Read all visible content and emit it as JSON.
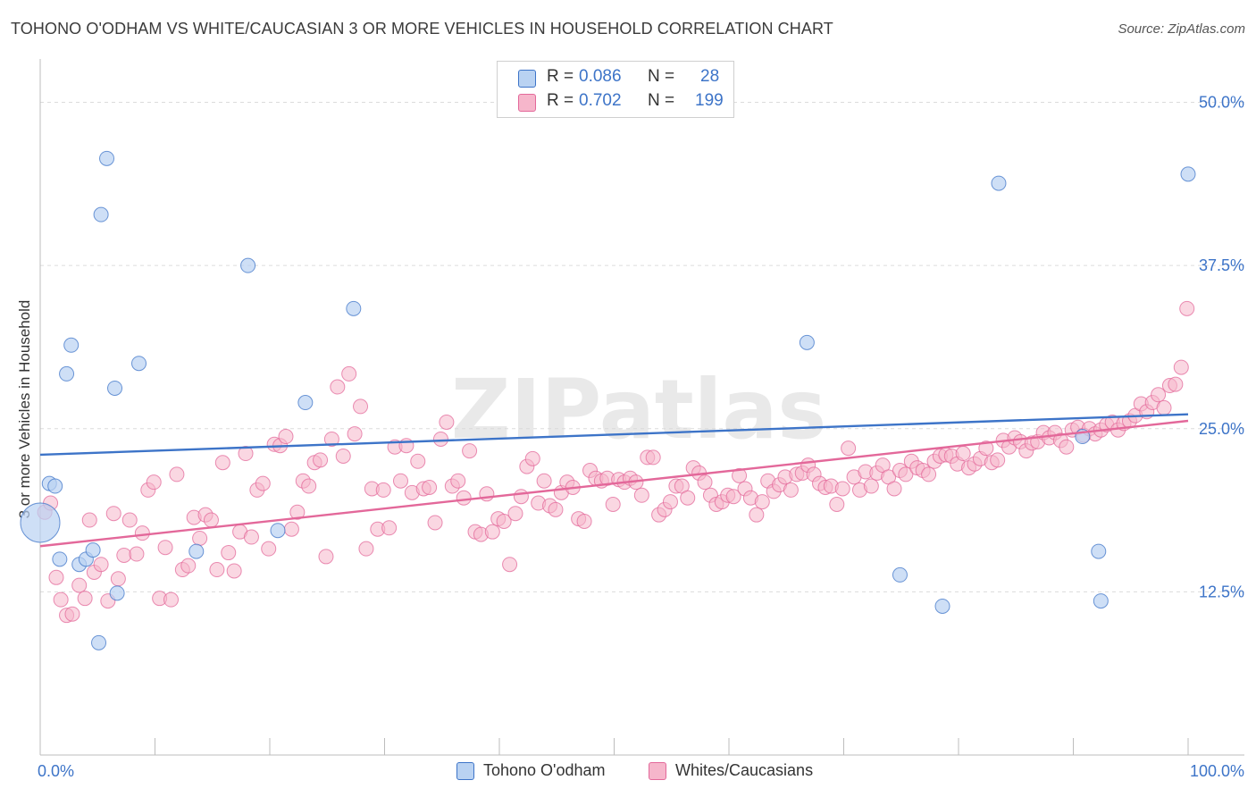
{
  "title": "TOHONO O'ODHAM VS WHITE/CAUCASIAN 3 OR MORE VEHICLES IN HOUSEHOLD CORRELATION CHART",
  "source": "Source: ZipAtlas.com",
  "colors": {
    "blue": "#3d74c8",
    "blue_fill": "#b9d2f2",
    "pink": "#e3689a",
    "pink_fill": "#f6b6cb",
    "tick_label": "#3d74c8"
  },
  "legend": {
    "rows": [
      {
        "r_label": "R =",
        "r_value": "0.086",
        "n_label": "N =",
        "n_value": "28"
      },
      {
        "r_label": "R =",
        "r_value": "0.702",
        "n_label": "N =",
        "n_value": "199"
      }
    ]
  },
  "bottom_legend": [
    "Tohono O'odham",
    "Whites/Caucasians"
  ],
  "watermark": "ZIPatlas",
  "chart_data": {
    "type": "scatter",
    "title": "TOHONO O'ODHAM VS WHITE/CAUCASIAN 3 OR MORE VEHICLES IN HOUSEHOLD CORRELATION CHART",
    "xlabel": "",
    "ylabel": "3 or more Vehicles in Household",
    "xlim": [
      0,
      100
    ],
    "ylim": [
      0,
      52.5
    ],
    "x_tick_labels": [
      "0.0%",
      "100.0%"
    ],
    "y_ticks": [
      12.5,
      25.0,
      37.5,
      50.0
    ],
    "y_tick_labels": [
      "12.5%",
      "25.0%",
      "37.5%",
      "50.0%"
    ],
    "grid": true,
    "series": [
      {
        "name": "Tohono O'odham",
        "color": "#3d74c8",
        "trend": {
          "x": [
            0,
            100
          ],
          "y": [
            23.0,
            26.1
          ]
        },
        "points": [
          [
            0.0,
            17.8
          ],
          [
            0.8,
            20.8
          ],
          [
            1.3,
            20.6
          ],
          [
            1.7,
            15.0
          ],
          [
            2.3,
            29.2
          ],
          [
            2.7,
            31.4
          ],
          [
            3.4,
            14.6
          ],
          [
            4.0,
            15.0
          ],
          [
            4.6,
            15.7
          ],
          [
            5.1,
            8.6
          ],
          [
            5.3,
            41.4
          ],
          [
            5.8,
            45.7
          ],
          [
            6.5,
            28.1
          ],
          [
            6.7,
            12.4
          ],
          [
            8.6,
            30.0
          ],
          [
            13.6,
            15.6
          ],
          [
            18.1,
            37.5
          ],
          [
            20.7,
            17.2
          ],
          [
            23.1,
            27.0
          ],
          [
            27.3,
            34.2
          ],
          [
            66.8,
            31.6
          ],
          [
            74.9,
            13.8
          ],
          [
            78.6,
            11.4
          ],
          [
            83.5,
            43.8
          ],
          [
            90.8,
            24.4
          ],
          [
            92.2,
            15.6
          ],
          [
            92.4,
            11.8
          ],
          [
            100.0,
            44.5
          ]
        ]
      },
      {
        "name": "Whites/Caucasians",
        "color": "#e3689a",
        "trend": {
          "x": [
            0,
            100
          ],
          "y": [
            16.0,
            25.6
          ]
        },
        "points": [
          [
            0.4,
            18.6
          ],
          [
            0.9,
            19.3
          ],
          [
            1.4,
            13.6
          ],
          [
            1.8,
            11.9
          ],
          [
            2.3,
            10.7
          ],
          [
            2.8,
            10.8
          ],
          [
            3.4,
            13.0
          ],
          [
            3.9,
            12.0
          ],
          [
            4.3,
            18.0
          ],
          [
            4.7,
            14.0
          ],
          [
            5.3,
            14.6
          ],
          [
            5.9,
            11.8
          ],
          [
            6.4,
            18.5
          ],
          [
            6.8,
            13.5
          ],
          [
            7.3,
            15.3
          ],
          [
            7.8,
            18.0
          ],
          [
            8.4,
            15.4
          ],
          [
            8.9,
            17.0
          ],
          [
            9.4,
            20.3
          ],
          [
            9.9,
            20.9
          ],
          [
            10.4,
            12.0
          ],
          [
            10.9,
            15.9
          ],
          [
            11.4,
            11.9
          ],
          [
            11.9,
            21.5
          ],
          [
            12.4,
            14.2
          ],
          [
            12.9,
            14.5
          ],
          [
            13.4,
            18.2
          ],
          [
            13.9,
            16.6
          ],
          [
            14.4,
            18.4
          ],
          [
            14.9,
            18.0
          ],
          [
            15.4,
            14.2
          ],
          [
            15.9,
            22.4
          ],
          [
            16.4,
            15.5
          ],
          [
            16.9,
            14.1
          ],
          [
            17.4,
            17.1
          ],
          [
            17.9,
            23.1
          ],
          [
            18.4,
            16.7
          ],
          [
            18.9,
            20.3
          ],
          [
            19.4,
            20.8
          ],
          [
            19.9,
            15.8
          ],
          [
            20.4,
            23.8
          ],
          [
            20.9,
            23.7
          ],
          [
            21.4,
            24.4
          ],
          [
            21.9,
            17.3
          ],
          [
            22.4,
            18.6
          ],
          [
            22.9,
            21.0
          ],
          [
            23.4,
            20.6
          ],
          [
            23.9,
            22.4
          ],
          [
            24.4,
            22.6
          ],
          [
            24.9,
            15.2
          ],
          [
            25.4,
            24.2
          ],
          [
            25.9,
            28.2
          ],
          [
            26.4,
            22.9
          ],
          [
            26.9,
            29.2
          ],
          [
            27.4,
            24.6
          ],
          [
            27.9,
            26.7
          ],
          [
            28.4,
            15.8
          ],
          [
            28.9,
            20.4
          ],
          [
            29.4,
            17.3
          ],
          [
            29.9,
            20.3
          ],
          [
            30.4,
            17.4
          ],
          [
            30.9,
            23.6
          ],
          [
            31.4,
            21.0
          ],
          [
            31.9,
            23.7
          ],
          [
            32.4,
            20.1
          ],
          [
            32.9,
            22.5
          ],
          [
            33.4,
            20.4
          ],
          [
            33.9,
            20.5
          ],
          [
            34.4,
            17.8
          ],
          [
            34.9,
            24.2
          ],
          [
            35.4,
            25.5
          ],
          [
            35.9,
            20.6
          ],
          [
            36.4,
            21.0
          ],
          [
            36.9,
            19.7
          ],
          [
            37.4,
            23.3
          ],
          [
            37.9,
            17.1
          ],
          [
            38.4,
            16.9
          ],
          [
            38.9,
            20.0
          ],
          [
            39.4,
            17.1
          ],
          [
            39.9,
            18.1
          ],
          [
            40.4,
            17.9
          ],
          [
            40.9,
            14.6
          ],
          [
            41.4,
            18.5
          ],
          [
            41.9,
            19.8
          ],
          [
            42.4,
            22.1
          ],
          [
            42.9,
            22.7
          ],
          [
            43.4,
            19.3
          ],
          [
            43.9,
            21.0
          ],
          [
            44.4,
            19.1
          ],
          [
            44.9,
            18.8
          ],
          [
            45.4,
            20.1
          ],
          [
            45.9,
            20.9
          ],
          [
            46.4,
            20.5
          ],
          [
            46.9,
            18.1
          ],
          [
            47.4,
            17.9
          ],
          [
            47.9,
            21.8
          ],
          [
            48.4,
            21.2
          ],
          [
            48.9,
            21.0
          ],
          [
            49.4,
            21.2
          ],
          [
            49.9,
            19.2
          ],
          [
            50.4,
            21.1
          ],
          [
            50.9,
            20.9
          ],
          [
            51.4,
            21.2
          ],
          [
            51.9,
            20.9
          ],
          [
            52.4,
            19.9
          ],
          [
            52.9,
            22.8
          ],
          [
            53.4,
            22.8
          ],
          [
            53.9,
            18.4
          ],
          [
            54.4,
            18.8
          ],
          [
            54.9,
            19.4
          ],
          [
            55.4,
            20.6
          ],
          [
            55.9,
            20.6
          ],
          [
            56.4,
            19.7
          ],
          [
            56.9,
            22.0
          ],
          [
            57.4,
            21.6
          ],
          [
            57.9,
            20.9
          ],
          [
            58.4,
            19.9
          ],
          [
            58.9,
            19.2
          ],
          [
            59.4,
            19.4
          ],
          [
            59.9,
            19.9
          ],
          [
            60.4,
            19.8
          ],
          [
            60.9,
            21.4
          ],
          [
            61.4,
            20.4
          ],
          [
            61.9,
            19.7
          ],
          [
            62.4,
            18.4
          ],
          [
            62.9,
            19.4
          ],
          [
            63.4,
            21.0
          ],
          [
            63.9,
            20.2
          ],
          [
            64.4,
            20.7
          ],
          [
            64.9,
            21.3
          ],
          [
            65.4,
            20.3
          ],
          [
            65.9,
            21.5
          ],
          [
            66.4,
            21.6
          ],
          [
            66.9,
            22.2
          ],
          [
            67.4,
            21.5
          ],
          [
            67.9,
            20.8
          ],
          [
            68.4,
            20.5
          ],
          [
            68.9,
            20.6
          ],
          [
            69.4,
            19.2
          ],
          [
            69.9,
            20.4
          ],
          [
            70.4,
            23.5
          ],
          [
            70.9,
            21.3
          ],
          [
            71.4,
            20.3
          ],
          [
            71.9,
            21.7
          ],
          [
            72.4,
            20.6
          ],
          [
            72.9,
            21.6
          ],
          [
            73.4,
            22.2
          ],
          [
            73.9,
            21.3
          ],
          [
            74.4,
            20.4
          ],
          [
            74.9,
            21.8
          ],
          [
            75.4,
            21.5
          ],
          [
            75.9,
            22.5
          ],
          [
            76.4,
            22.0
          ],
          [
            76.9,
            21.8
          ],
          [
            77.4,
            21.5
          ],
          [
            77.9,
            22.5
          ],
          [
            78.4,
            22.9
          ],
          [
            78.9,
            23.0
          ],
          [
            79.4,
            22.9
          ],
          [
            79.9,
            22.3
          ],
          [
            80.4,
            23.1
          ],
          [
            80.9,
            22.0
          ],
          [
            81.4,
            22.3
          ],
          [
            81.9,
            22.7
          ],
          [
            82.4,
            23.5
          ],
          [
            82.9,
            22.4
          ],
          [
            83.4,
            22.6
          ],
          [
            83.9,
            24.1
          ],
          [
            84.4,
            23.6
          ],
          [
            84.9,
            24.3
          ],
          [
            85.4,
            24.0
          ],
          [
            85.9,
            23.3
          ],
          [
            86.4,
            23.9
          ],
          [
            86.9,
            24.0
          ],
          [
            87.4,
            24.7
          ],
          [
            87.9,
            24.3
          ],
          [
            88.4,
            24.7
          ],
          [
            88.9,
            24.1
          ],
          [
            89.4,
            23.6
          ],
          [
            89.9,
            24.9
          ],
          [
            90.4,
            25.1
          ],
          [
            90.9,
            24.5
          ],
          [
            91.4,
            25.0
          ],
          [
            91.9,
            24.6
          ],
          [
            92.4,
            24.9
          ],
          [
            92.9,
            25.3
          ],
          [
            93.4,
            25.5
          ],
          [
            93.9,
            24.9
          ],
          [
            94.4,
            25.4
          ],
          [
            94.9,
            25.6
          ],
          [
            95.4,
            26.0
          ],
          [
            95.9,
            26.9
          ],
          [
            96.4,
            26.3
          ],
          [
            96.9,
            27.0
          ],
          [
            97.4,
            27.6
          ],
          [
            97.9,
            26.6
          ],
          [
            98.4,
            28.3
          ],
          [
            98.9,
            28.4
          ],
          [
            99.4,
            29.7
          ],
          [
            99.9,
            34.2
          ]
        ]
      }
    ]
  }
}
